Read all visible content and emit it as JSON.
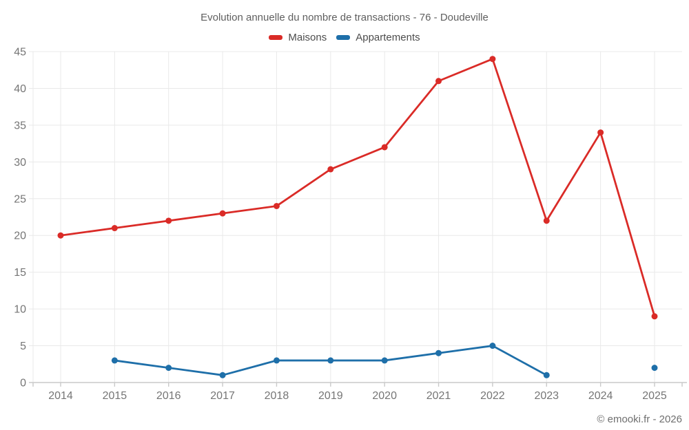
{
  "footer": {
    "copyright": "© emooki.fr - 2026"
  },
  "chart_data": {
    "type": "line",
    "title": "Evolution annuelle du nombre de transactions - 76 - Doudeville",
    "categories": [
      "2014",
      "2015",
      "2016",
      "2017",
      "2018",
      "2019",
      "2020",
      "2021",
      "2022",
      "2023",
      "2024",
      "2025"
    ],
    "series": [
      {
        "name": "Maisons",
        "color": "#da2b27",
        "values": [
          20,
          21,
          22,
          23,
          24,
          29,
          32,
          41,
          44,
          22,
          34,
          9
        ]
      },
      {
        "name": "Appartements",
        "color": "#1e6fa9",
        "values": [
          null,
          3,
          2,
          1,
          3,
          3,
          3,
          4,
          5,
          1,
          null,
          2
        ]
      }
    ],
    "xlabel": "",
    "ylabel": "",
    "ylim": [
      0,
      45
    ],
    "yticks": [
      0,
      5,
      10,
      15,
      20,
      25,
      30,
      35,
      40,
      45
    ],
    "grid": true,
    "legend_position": "top",
    "styles": {
      "grid_color": "#e9e9e9",
      "axis_color": "#c9c9c9",
      "tick_label_color": "#757575",
      "title_color": "#5f5f5f",
      "legend_text_color": "#4c4c4c",
      "copyright_color": "#6f6f6f",
      "background": "#ffffff"
    }
  }
}
